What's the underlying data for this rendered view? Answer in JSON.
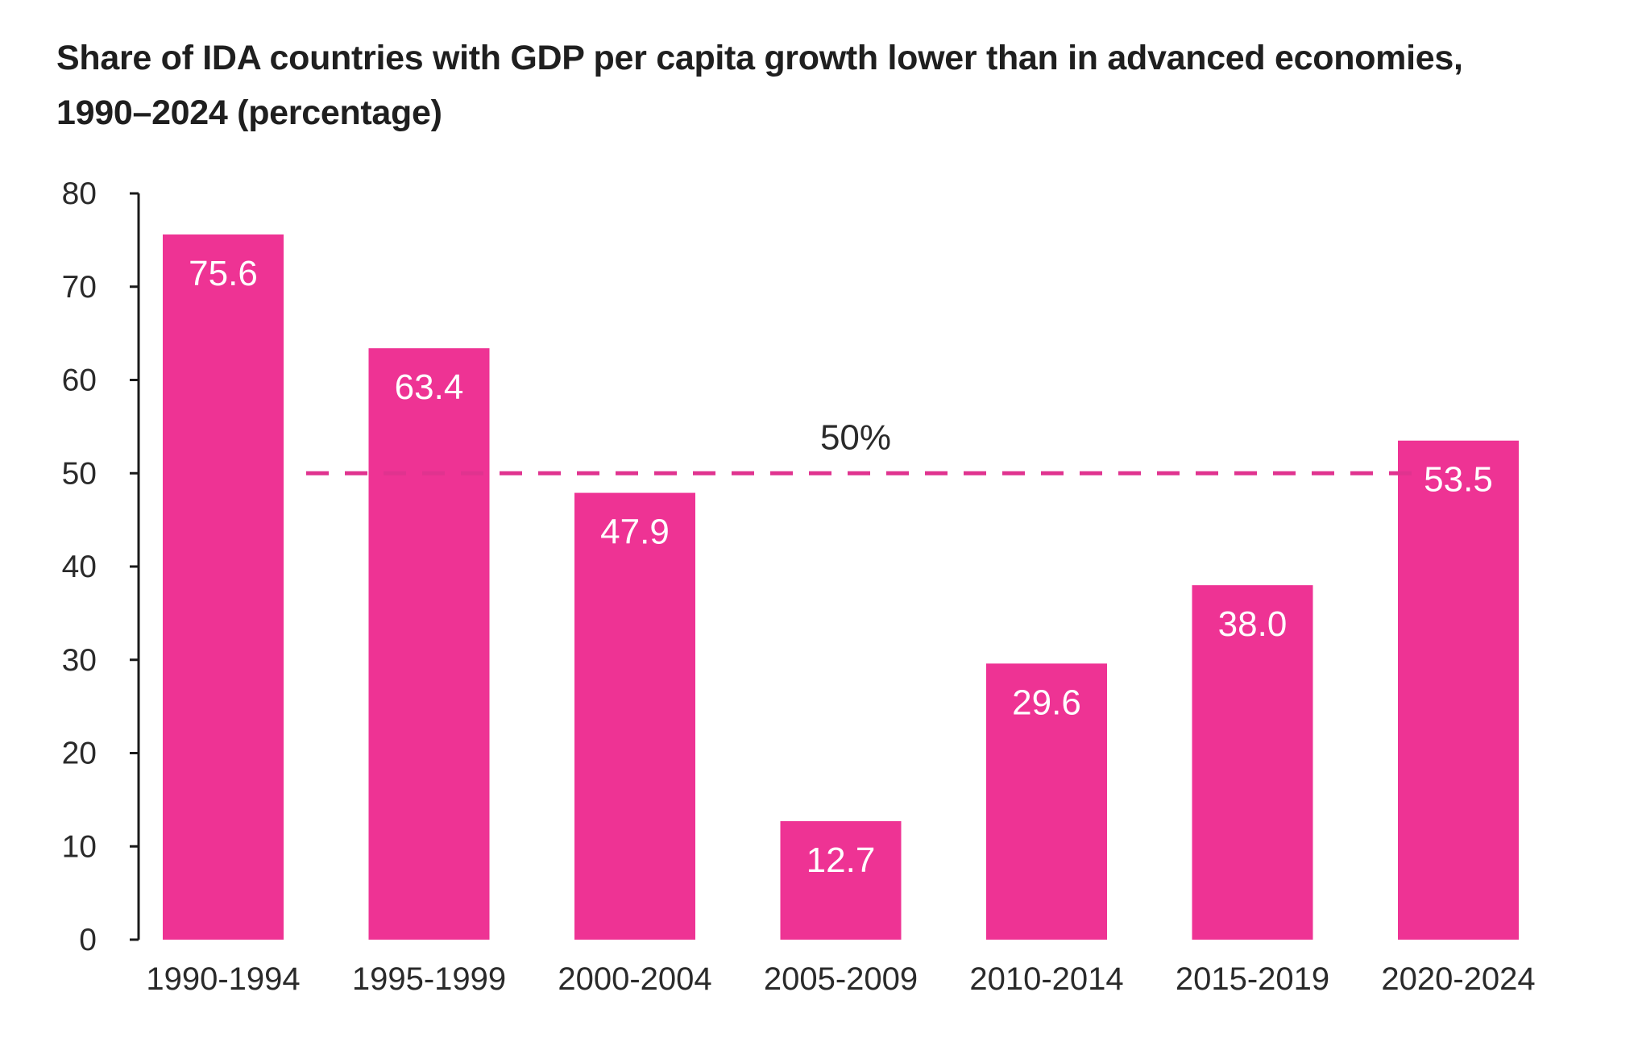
{
  "chart_data": {
    "type": "bar",
    "title": "Share of IDA countries with GDP per capita growth lower than in advanced economies,",
    "subtitle": "1990–2024 (percentage)",
    "categories": [
      "1990-1994",
      "1995-1999",
      "2000-2004",
      "2005-2009",
      "2010-2014",
      "2015-2019",
      "2020-2024"
    ],
    "values": [
      75.6,
      63.4,
      47.9,
      12.7,
      29.6,
      38.0,
      53.5
    ],
    "value_labels": [
      "75.6",
      "63.4",
      "47.9",
      "12.7",
      "29.6",
      "38.0",
      "53.5"
    ],
    "ylim": [
      0,
      80
    ],
    "yticks": [
      0,
      10,
      20,
      30,
      40,
      50,
      60,
      70,
      80
    ],
    "xlabel": "",
    "ylabel": "",
    "grid": false,
    "reference_line": {
      "value": 50,
      "label": "50%",
      "style": "dashed"
    },
    "colors": {
      "bar": "#EE3394",
      "reference_line": "#E0338F",
      "value_label": "#ffffff"
    }
  }
}
